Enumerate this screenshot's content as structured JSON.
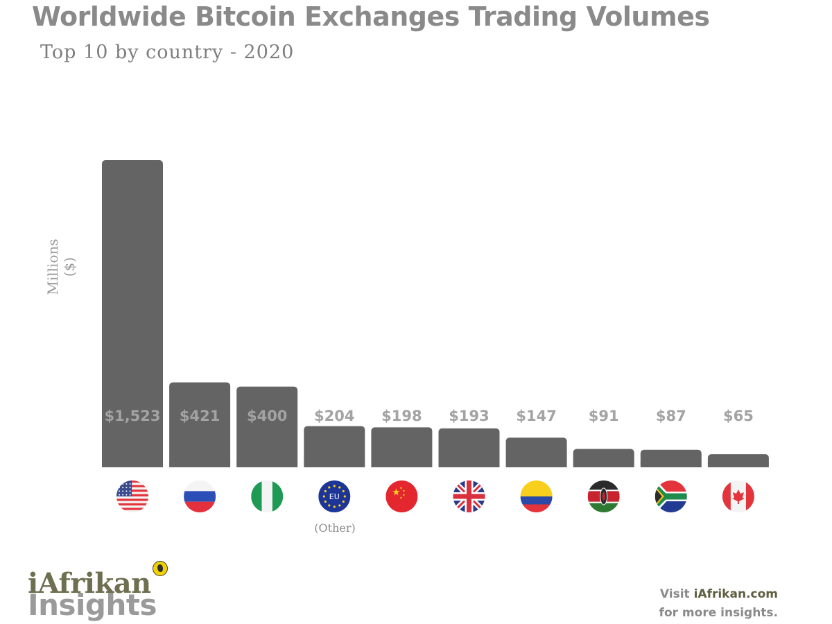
{
  "header": {
    "title": "Worldwide Bitcoin Exchanges Trading Volumes",
    "subtitle": "Top 10 by country - 2020"
  },
  "chart_data": {
    "type": "bar",
    "ylabel_line1": "Millions",
    "ylabel_line2": "($)",
    "categories": [
      "United States",
      "Russia",
      "Nigeria",
      "EU",
      "China",
      "United Kingdom",
      "Colombia",
      "Kenya",
      "South Africa",
      "Canada"
    ],
    "values": [
      1523,
      421,
      400,
      204,
      198,
      193,
      147,
      91,
      87,
      65
    ],
    "value_labels": [
      "$1,523",
      "$421",
      "$400",
      "$204",
      "$198",
      "$193",
      "$147",
      "$91",
      "$87",
      "$65"
    ],
    "flag_icons": [
      "us-flag-icon",
      "russia-flag-icon",
      "nigeria-flag-icon",
      "eu-flag-icon",
      "china-flag-icon",
      "uk-flag-icon",
      "colombia-flag-icon",
      "kenya-flag-icon",
      "south-africa-flag-icon",
      "canada-flag-icon"
    ],
    "eu_flag_text": "EU",
    "eu_note": "(Other)",
    "ylim": [
      0,
      1523
    ],
    "grid": false,
    "legend": "none",
    "bar_color": "#646464",
    "label_color": "#a3a3a3"
  },
  "footer": {
    "logo_line1": "iAfrikan",
    "logo_line2": "Insights",
    "visit_prefix": "Visit ",
    "visit_site": "iAfrikan.com",
    "visit_suffix": "for more insights."
  }
}
